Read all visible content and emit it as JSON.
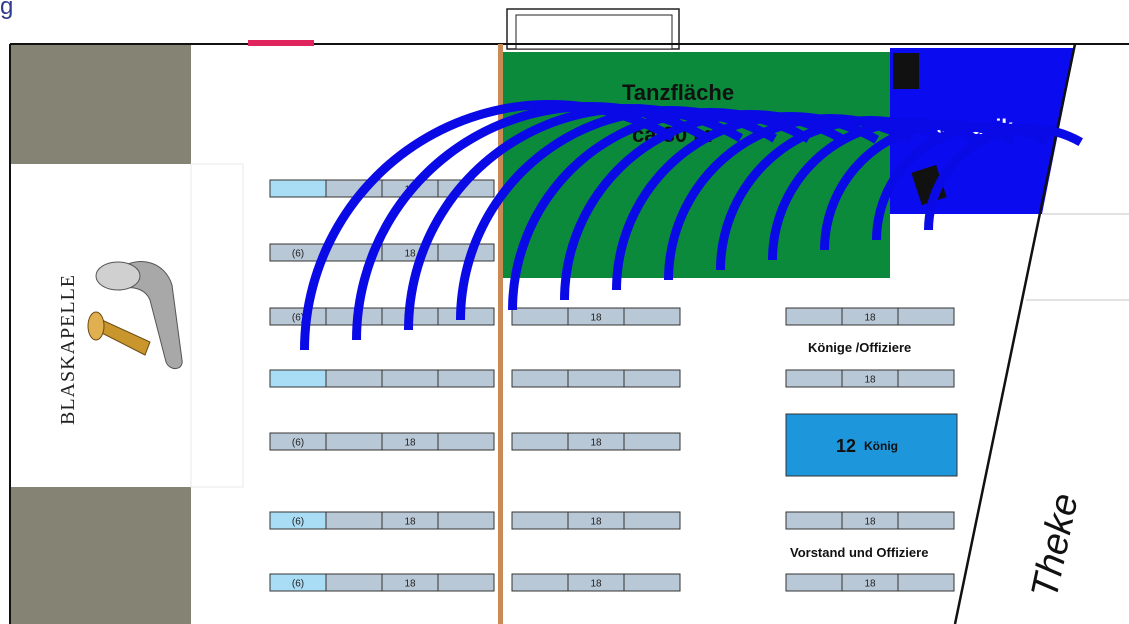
{
  "header": {
    "title_fragment": "g"
  },
  "labels": {
    "blaskapelle": "BLASKAPELLE",
    "tanzflaeche_line1": "Tanzfläche",
    "tanzflaeche_line2": "ca 80 m²",
    "tanzmusik": "Tanzmusik",
    "koenige_offiziere": "Könige /Offiziere",
    "vorstand_offiziere": "Vorstand und Offiziere",
    "theke": "Theke"
  },
  "koenig_table": {
    "number": "12",
    "label": "König"
  },
  "table_rows": [
    {
      "cells": [
        "",
        "",
        "18",
        ""
      ],
      "highlight_first": true
    },
    {
      "cells": [
        "(6)",
        "",
        "18",
        ""
      ],
      "highlight_first": false
    },
    {
      "cells": [
        "(6)",
        "",
        "",
        ""
      ],
      "highlight_first": false
    },
    {
      "cells": [
        "",
        "",
        "",
        ""
      ],
      "highlight_first": true
    },
    {
      "cells": [
        "(6)",
        "",
        "18",
        ""
      ],
      "highlight_first": false
    },
    {
      "cells": [
        "(6)",
        "",
        "18",
        ""
      ],
      "highlight_first": true
    },
    {
      "cells": [
        "(6)",
        "",
        "18",
        ""
      ],
      "highlight_first": true
    }
  ],
  "middle_tables": [
    {
      "cells": [
        "",
        "18",
        ""
      ]
    },
    {
      "cells": [
        "",
        "",
        ""
      ]
    },
    {
      "cells": [
        "",
        "18",
        ""
      ]
    },
    {
      "cells": [
        "",
        "18",
        ""
      ]
    },
    {
      "cells": [
        "",
        "18",
        ""
      ]
    }
  ],
  "right_tables": [
    {
      "cells": [
        "",
        "18",
        ""
      ]
    },
    {
      "cells": [
        "",
        "18",
        ""
      ]
    },
    {
      "cells": [
        "",
        "18",
        ""
      ]
    },
    {
      "cells": [
        "",
        "18",
        ""
      ]
    }
  ],
  "colors": {
    "wall_gray": "#858374",
    "dance_floor": "#0a8a3a",
    "band_area": "#0b0bf0",
    "arcs": "#0a0ae6",
    "table_fill": "#b9c8d6",
    "table_highlight": "#a9dcf5",
    "koenig_fill": "#1e96dc",
    "pillar": "#c98a55"
  }
}
